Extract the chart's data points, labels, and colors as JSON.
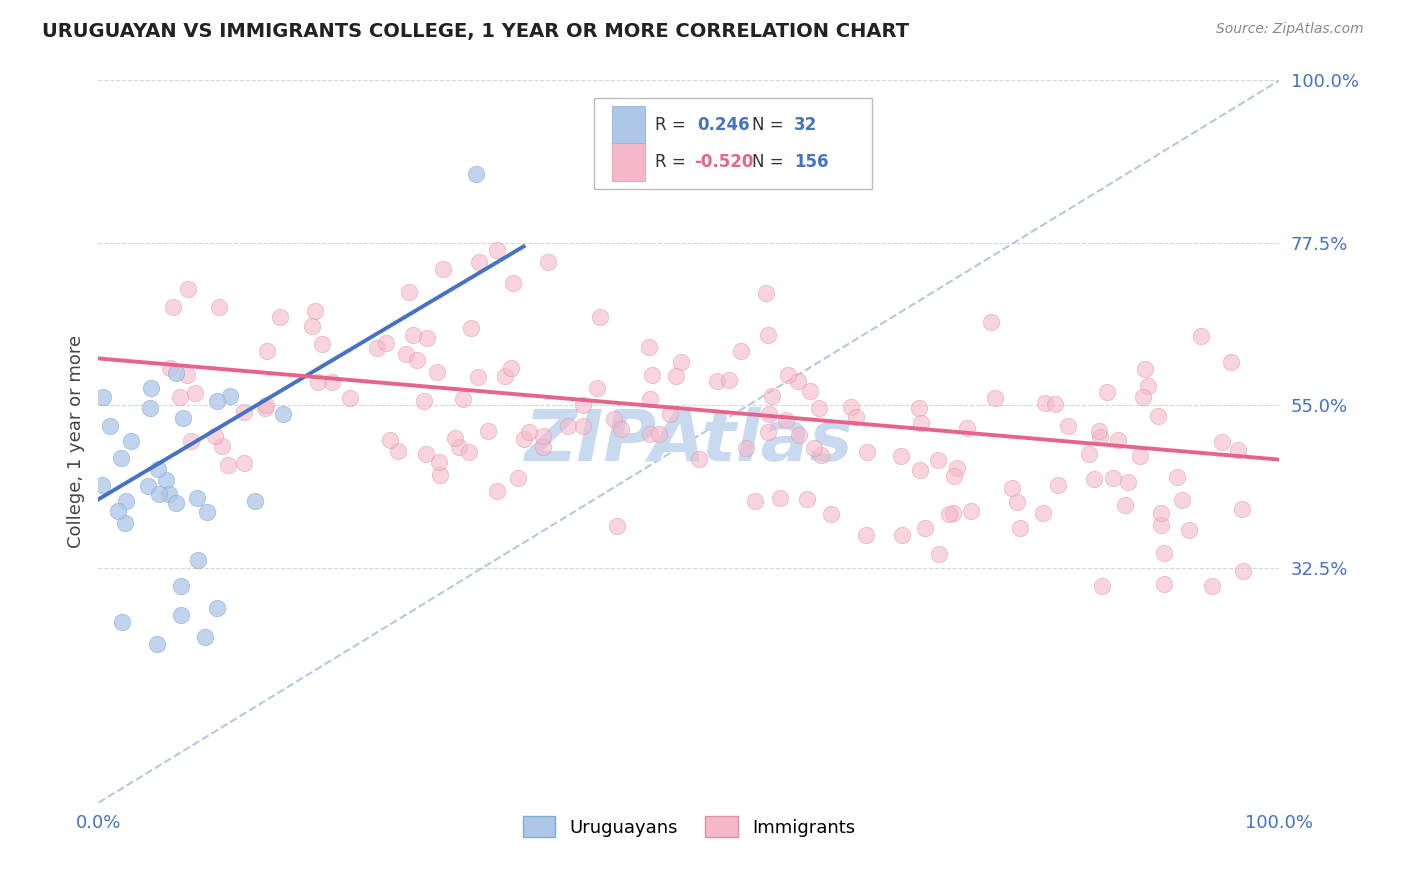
{
  "title": "URUGUAYAN VS IMMIGRANTS COLLEGE, 1 YEAR OR MORE CORRELATION CHART",
  "source_text": "Source: ZipAtlas.com",
  "ylabel": "College, 1 year or more",
  "xmin": 0.0,
  "xmax": 1.0,
  "ymin": 0.0,
  "ymax": 1.0,
  "yticks": [
    0.325,
    0.55,
    0.775,
    1.0
  ],
  "ytick_labels": [
    "32.5%",
    "55.0%",
    "77.5%",
    "100.0%"
  ],
  "watermark": "ZIPAtlas",
  "watermark_color": "#c8daf0",
  "uruguayan_color": "#aec6e8",
  "uruguayan_edge": "#7bafd4",
  "immigrant_color": "#f4b8c8",
  "immigrant_edge": "#e090a8",
  "trend_blue": "#4472c4",
  "trend_pink": "#e8638a",
  "diag_color": "#aac4e0",
  "R_uruguayan": 0.246,
  "N_uruguayan": 32,
  "R_immigrant": -0.52,
  "N_immigrant": 156,
  "blue_trend_x0": 0.0,
  "blue_trend_y0": 0.42,
  "blue_trend_x1": 0.36,
  "blue_trend_y1": 0.77,
  "pink_trend_x0": 0.0,
  "pink_trend_y0": 0.615,
  "pink_trend_x1": 1.0,
  "pink_trend_y1": 0.475
}
